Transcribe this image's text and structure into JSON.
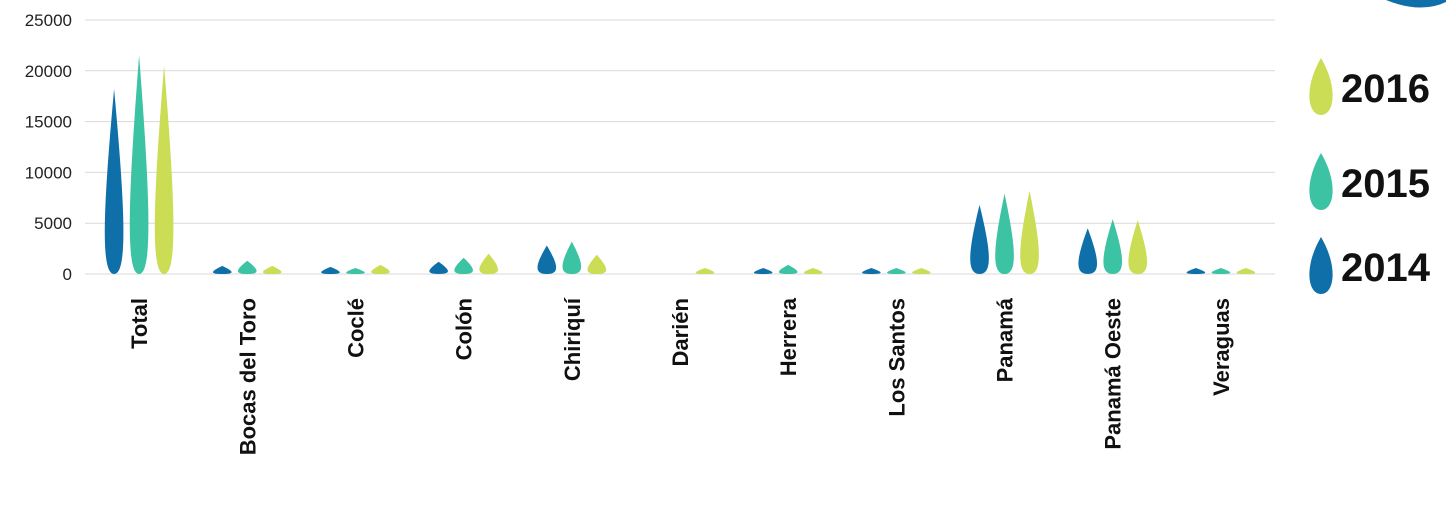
{
  "chart_data": {
    "type": "bar",
    "title": "",
    "xlabel": "",
    "ylabel": "",
    "ylim": [
      0,
      25000
    ],
    "yticks": [
      0,
      5000,
      10000,
      15000,
      20000,
      25000
    ],
    "grid": true,
    "legend_placement": "right",
    "categories": [
      "Total",
      "Bocas del Toro",
      "Coclé",
      "Colón",
      "Chiriquí",
      "Darién",
      "Herrera",
      "Los Santos",
      "Panamá",
      "Panamá Oeste",
      "Veraguas"
    ],
    "series": [
      {
        "name": "2014",
        "color": "#0f6fa8",
        "values": [
          18200,
          800,
          700,
          1200,
          2800,
          0,
          400,
          400,
          6800,
          4500,
          400
        ]
      },
      {
        "name": "2015",
        "color": "#3cc3a3",
        "values": [
          21500,
          1300,
          500,
          1600,
          3200,
          0,
          900,
          400,
          7900,
          5400,
          400
        ]
      },
      {
        "name": "2016",
        "color": "#cadd55",
        "values": [
          20500,
          800,
          900,
          2000,
          1900,
          500,
          400,
          400,
          8200,
          5300,
          400
        ]
      }
    ],
    "legend_order": [
      "2016",
      "2015",
      "2014"
    ]
  }
}
